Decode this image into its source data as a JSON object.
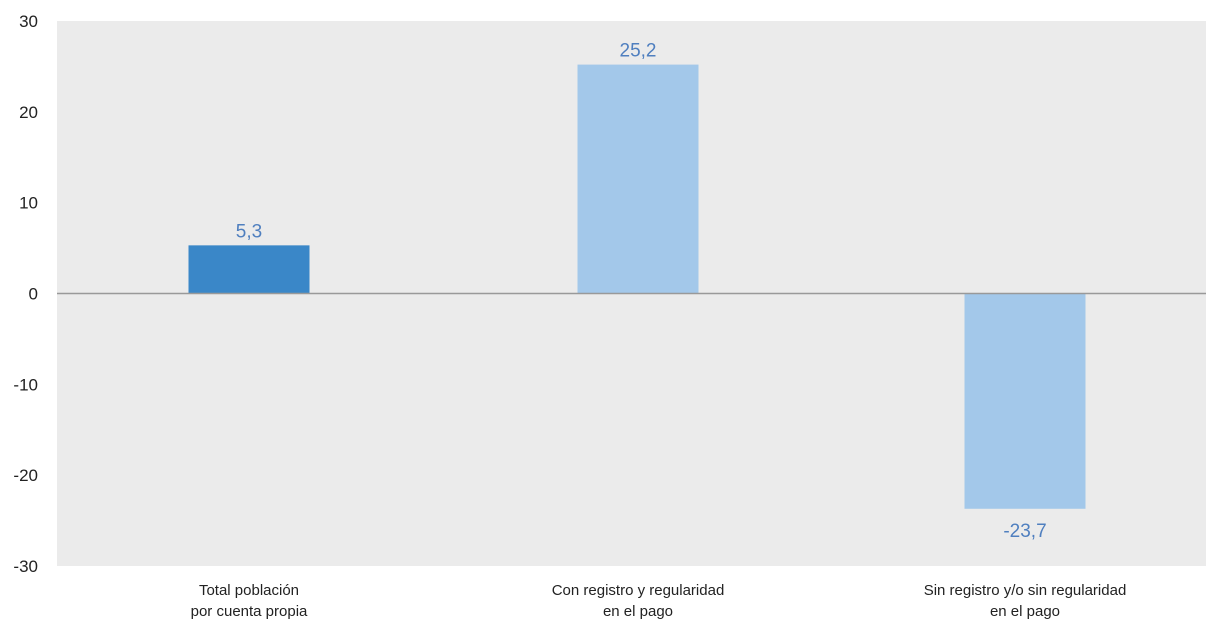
{
  "chart_data": {
    "type": "bar",
    "title": "",
    "xlabel": "",
    "ylabel": "",
    "categories": [
      [
        "Total población",
        "por cuenta propia"
      ],
      [
        "Con registro y regularidad",
        "en el pago"
      ],
      [
        "Sin registro y/o sin regularidad",
        "en el pago"
      ]
    ],
    "values": [
      5.3,
      25.2,
      -23.7
    ],
    "data_labels": [
      "5,3",
      "25,2",
      "-23,7"
    ],
    "bar_colors": [
      "#3a87c8",
      "#a3c8ea",
      "#a3c8ea"
    ],
    "ylim": [
      -30,
      30
    ],
    "yticks": [
      30,
      20,
      10,
      0,
      -10,
      -20,
      -30
    ],
    "ytick_labels": [
      "30",
      "20",
      "10",
      "0",
      "-10",
      "-20",
      "-30"
    ],
    "grid": false,
    "legend": "none",
    "plot_background": "#ebebeb",
    "zero_line_color": "#999999",
    "data_label_color": "#4f7fbf"
  }
}
